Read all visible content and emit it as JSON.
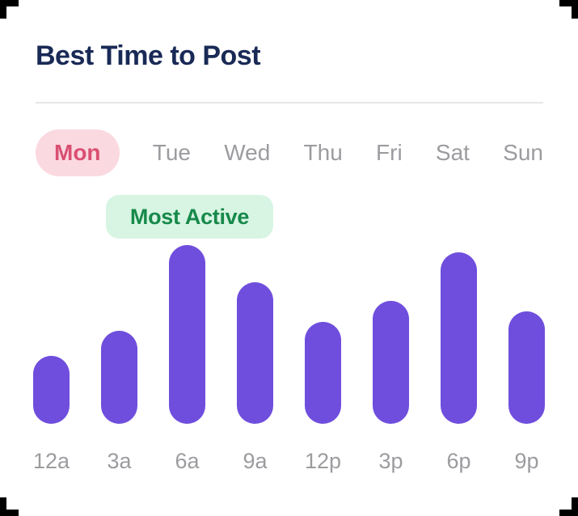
{
  "header": {
    "title": "Best Time to Post"
  },
  "tabs": {
    "days": [
      "Mon",
      "Tue",
      "Wed",
      "Thu",
      "Fri",
      "Sat",
      "Sun"
    ],
    "selected": "Mon"
  },
  "annotation": {
    "label": "Most Active",
    "applies_to_category": "6a"
  },
  "chart_data": {
    "type": "bar",
    "title": "Best Time to Post",
    "selected_series": "Mon",
    "categories": [
      "12a",
      "3a",
      "6a",
      "9a",
      "12p",
      "3p",
      "6p",
      "9p"
    ],
    "values": [
      38,
      52,
      100,
      79,
      57,
      69,
      96,
      63
    ],
    "xlabel": "",
    "ylabel": "",
    "ylim": [
      0,
      100
    ],
    "grid": false,
    "legend": false,
    "annotations": [
      {
        "category": "6a",
        "text": "Most Active"
      }
    ]
  },
  "colors": {
    "accent_purple": "#6F4EDD",
    "pink_bg": "#FBD9E1",
    "pink_text": "#D94F72",
    "green_bg": "#D8F5E3",
    "green_text": "#17894A",
    "title_color": "#192A56",
    "muted": "#9C9CA0",
    "divider": "#E7E7EA"
  }
}
